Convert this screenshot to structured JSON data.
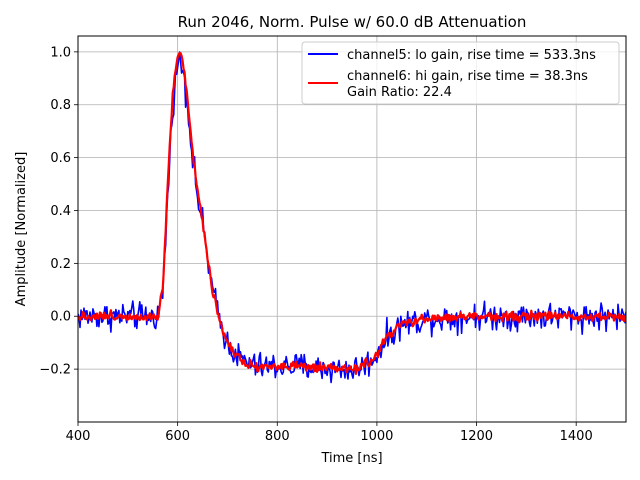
{
  "chart_data": {
    "type": "line",
    "title": "Run 2046, Norm. Pulse w/ 60.0 dB Attenuation",
    "xlabel": "Time [ns]",
    "ylabel": "Amplitude [Normalized]",
    "xlim": [
      400,
      1500
    ],
    "ylim": [
      -0.4,
      1.06
    ],
    "grid": true,
    "legend_position": "top-right",
    "xticks": [
      400,
      600,
      800,
      1000,
      1200,
      1400
    ],
    "yticks": [
      -0.2,
      0.0,
      0.2,
      0.4,
      0.6,
      0.8,
      1.0
    ],
    "xtick_labels": [
      "400",
      "600",
      "800",
      "1000",
      "1200",
      "1400"
    ],
    "ytick_labels": [
      "−0.2",
      "0.0",
      "0.2",
      "0.4",
      "0.6",
      "0.8",
      "1.0"
    ],
    "series": [
      {
        "name": "channel5: lo gain, rise time = 533.3ns",
        "color": "#0000ff",
        "noise": 0.035,
        "x": [
          400,
          560,
          570,
          580,
          590,
          600,
          606,
          612,
          620,
          630,
          640,
          650,
          660,
          670,
          680,
          690,
          700,
          720,
          740,
          760,
          780,
          800,
          850,
          900,
          950,
          970,
          990,
          1000,
          1020,
          1050,
          1100,
          1200,
          1300,
          1400,
          1500
        ],
        "y": [
          0.0,
          0.0,
          0.08,
          0.45,
          0.8,
          0.95,
          0.97,
          0.92,
          0.8,
          0.6,
          0.45,
          0.35,
          0.22,
          0.1,
          0.02,
          -0.05,
          -0.1,
          -0.15,
          -0.18,
          -0.19,
          -0.19,
          -0.19,
          -0.19,
          -0.2,
          -0.2,
          -0.19,
          -0.17,
          -0.14,
          -0.08,
          -0.03,
          -0.01,
          0.0,
          0.0,
          0.0,
          0.0
        ]
      },
      {
        "name": "channel6: hi gain, rise time = 38.3ns",
        "color": "#ff0000",
        "noise": 0.012,
        "x": [
          400,
          560,
          570,
          580,
          590,
          600,
          606,
          612,
          620,
          630,
          640,
          650,
          660,
          670,
          680,
          690,
          700,
          720,
          740,
          760,
          780,
          800,
          850,
          900,
          950,
          970,
          990,
          1000,
          1020,
          1050,
          1100,
          1200,
          1300,
          1400,
          1500
        ],
        "y": [
          0.0,
          0.0,
          0.1,
          0.5,
          0.85,
          0.98,
          1.0,
          0.95,
          0.82,
          0.62,
          0.47,
          0.36,
          0.23,
          0.1,
          0.02,
          -0.05,
          -0.1,
          -0.15,
          -0.18,
          -0.19,
          -0.19,
          -0.19,
          -0.19,
          -0.2,
          -0.2,
          -0.19,
          -0.17,
          -0.14,
          -0.08,
          -0.03,
          -0.01,
          0.0,
          0.0,
          0.0,
          0.0
        ]
      }
    ],
    "legend_extra": "Gain Ratio: 22.4"
  }
}
